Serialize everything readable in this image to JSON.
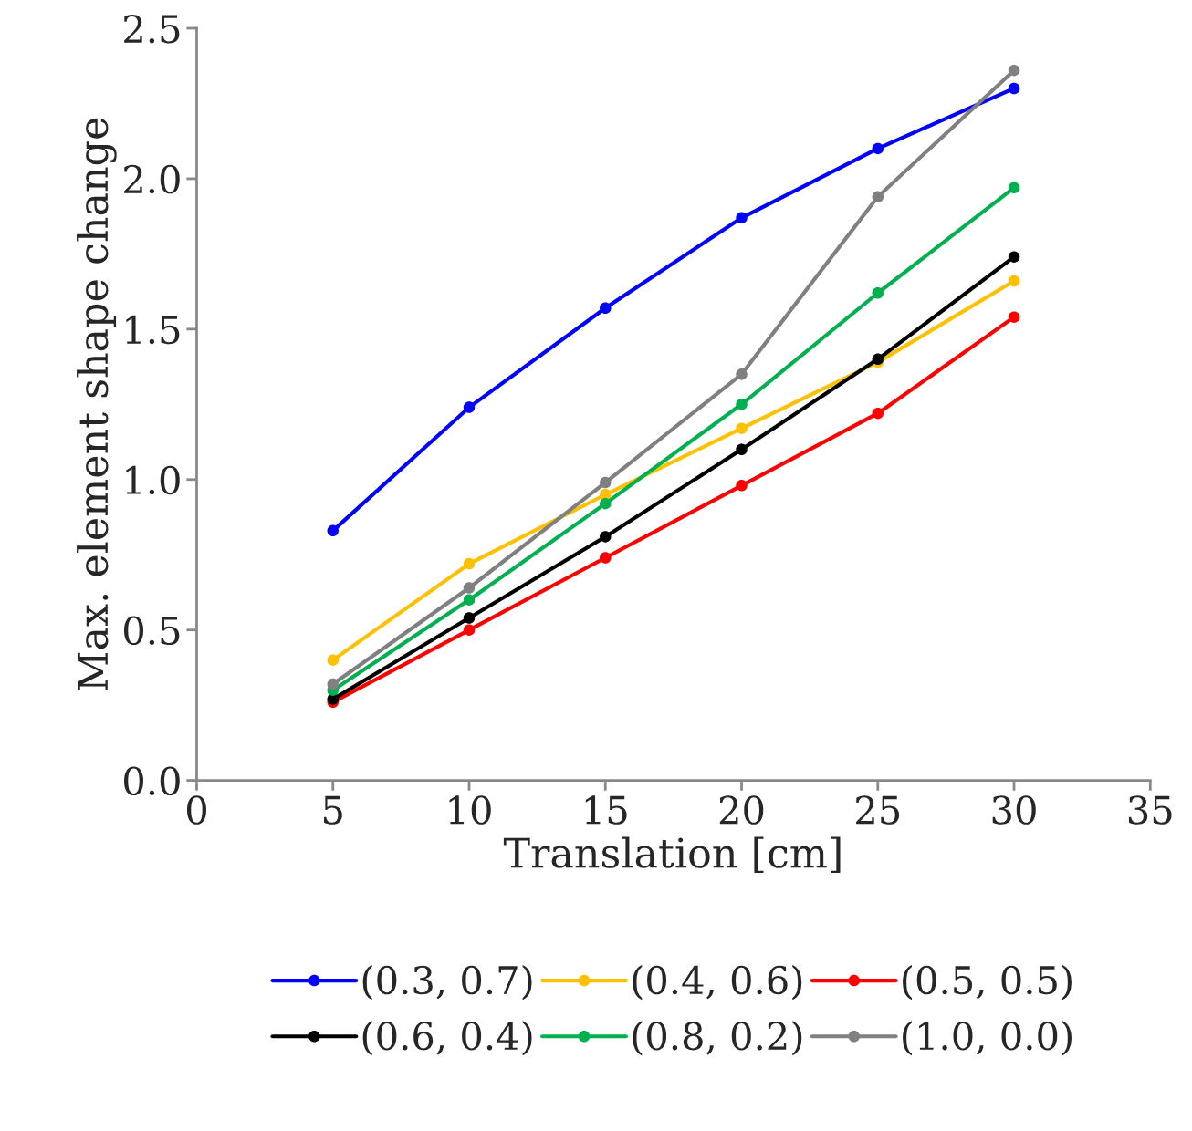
{
  "chart_data": {
    "type": "line",
    "xlabel": "Translation [cm]",
    "ylabel": "Max. element shape change",
    "x": [
      5,
      10,
      15,
      20,
      25,
      30
    ],
    "series": [
      {
        "name": "(0.3, 0.7)",
        "color": "#0000ff",
        "values": [
          0.83,
          1.24,
          1.57,
          1.87,
          2.1,
          2.3
        ]
      },
      {
        "name": "(0.4, 0.6)",
        "color": "#ffc000",
        "values": [
          0.4,
          0.72,
          0.95,
          1.17,
          1.39,
          1.66
        ]
      },
      {
        "name": "(0.5, 0.5)",
        "color": "#ff0000",
        "values": [
          0.26,
          0.5,
          0.74,
          0.98,
          1.22,
          1.54
        ]
      },
      {
        "name": "(0.6, 0.4)",
        "color": "#000000",
        "values": [
          0.27,
          0.54,
          0.81,
          1.1,
          1.4,
          1.74
        ]
      },
      {
        "name": "(0.8, 0.2)",
        "color": "#00b050",
        "values": [
          0.3,
          0.6,
          0.92,
          1.25,
          1.62,
          1.97
        ]
      },
      {
        "name": "(1.0, 0.0)",
        "color": "#808080",
        "values": [
          0.32,
          0.64,
          0.99,
          1.35,
          1.94,
          2.36
        ]
      }
    ],
    "xlim": [
      0,
      35
    ],
    "xticks": [
      0,
      5,
      10,
      15,
      20,
      25,
      30,
      35
    ],
    "ylim": [
      0,
      2.5
    ],
    "yticks": [
      {
        "value": 0,
        "label": "0.0"
      },
      {
        "value": 0.5,
        "label": "0.5"
      },
      {
        "value": 1,
        "label": "1.0"
      },
      {
        "value": 1.5,
        "label": "1.5"
      },
      {
        "value": 2,
        "label": "2.0"
      },
      {
        "value": 2.5,
        "label": "2.5"
      }
    ],
    "grid": false,
    "legend": "bottom",
    "marker": "circle",
    "line_style": "solid"
  }
}
